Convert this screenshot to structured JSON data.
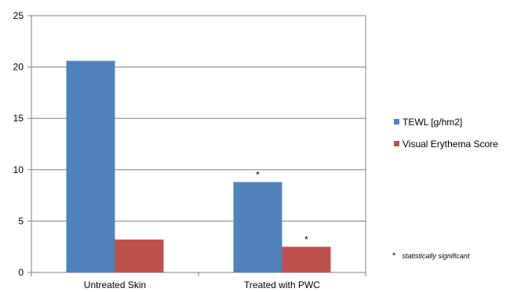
{
  "chart_data": {
    "type": "bar",
    "categories": [
      "Untreated Skin",
      "Treated with PWC"
    ],
    "series": [
      {
        "name": "TEWL [g/hm2]",
        "values": [
          20.6,
          8.8
        ],
        "color": "#4F81BD",
        "markers": [
          "",
          "*"
        ]
      },
      {
        "name": "Visual Erythema Score",
        "values": [
          3.2,
          2.5
        ],
        "color": "#C0504D",
        "markers": [
          "",
          "*"
        ]
      }
    ],
    "ylim": [
      0,
      25
    ],
    "yticks": [
      0,
      5,
      10,
      15,
      20,
      25
    ],
    "grid": true,
    "legend": "right",
    "annotation": {
      "symbol": "*",
      "text": "statistically  significant"
    }
  }
}
